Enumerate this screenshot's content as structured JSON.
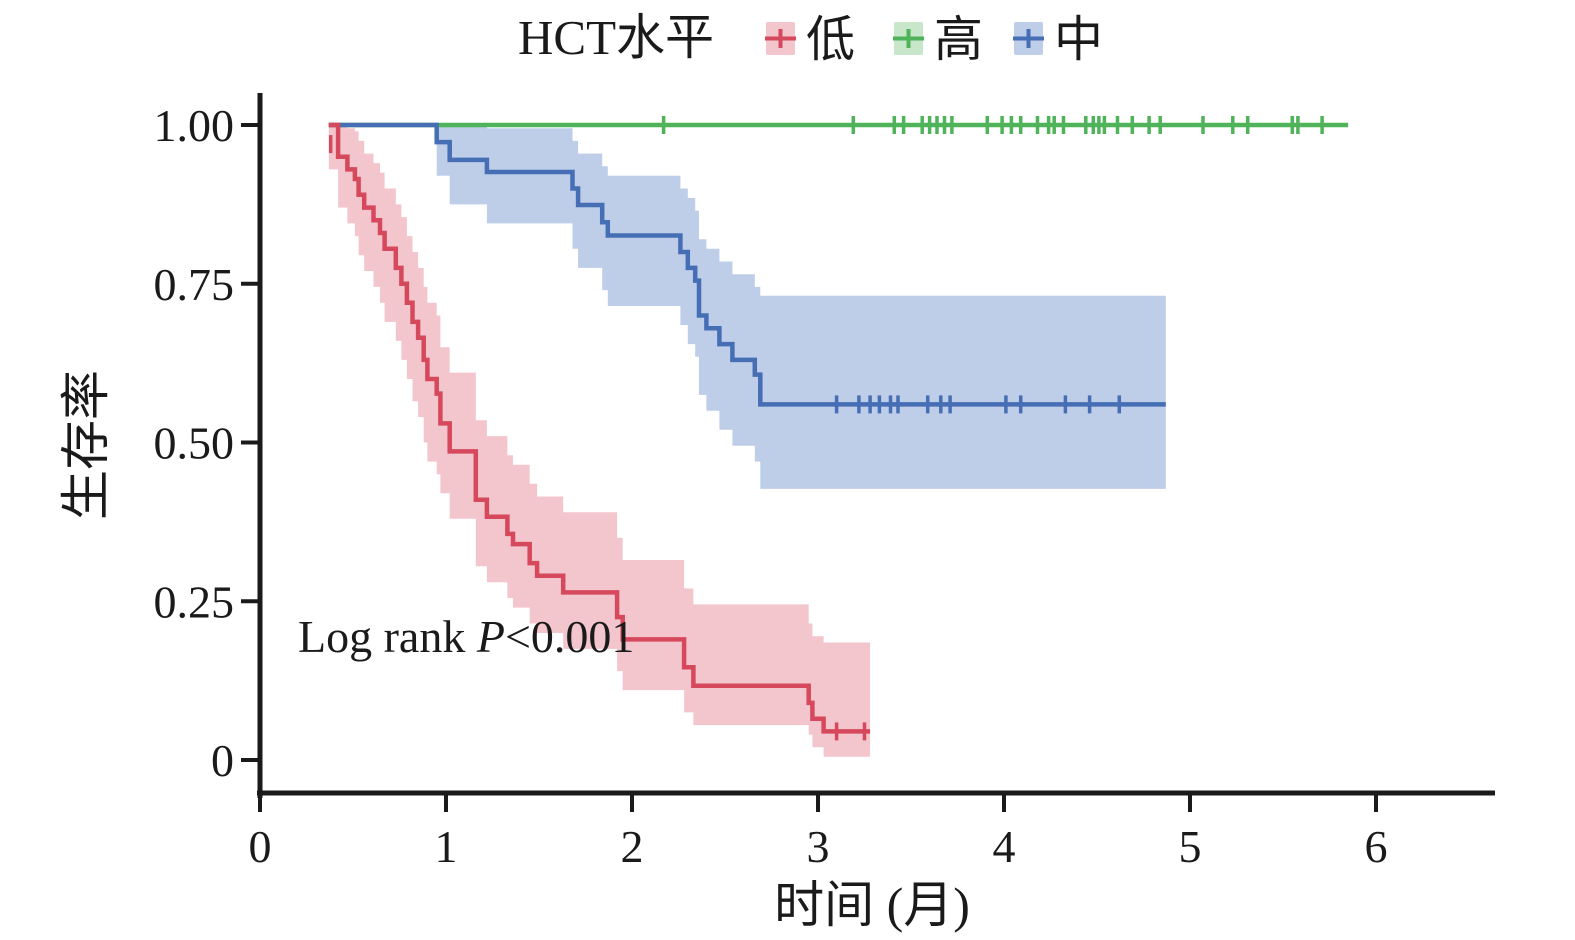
{
  "colors": {
    "axis": "#1a1a1a",
    "text": "#1a1a1a",
    "background": "#ffffff"
  },
  "legend": {
    "title": "HCT水平",
    "items": [
      {
        "label": "低",
        "key": "low"
      },
      {
        "label": "高",
        "key": "high"
      },
      {
        "label": "中",
        "key": "medium"
      }
    ]
  },
  "annotation": {
    "text_before": "Log rank ",
    "italic_part": "P",
    "text_after": "<0.001"
  },
  "axes": {
    "x_label": "时间 (月)",
    "y_label": "生存率",
    "x_ticks": [
      {
        "value": 0,
        "label": "0"
      },
      {
        "value": 1,
        "label": "1"
      },
      {
        "value": 2,
        "label": "2"
      },
      {
        "value": 3,
        "label": "3"
      },
      {
        "value": 4,
        "label": "4"
      },
      {
        "value": 5,
        "label": "5"
      },
      {
        "value": 6,
        "label": "6"
      }
    ],
    "y_ticks": [
      {
        "value": 0,
        "label": "0"
      },
      {
        "value": 0.25,
        "label": "0.25"
      },
      {
        "value": 0.5,
        "label": "0.50"
      },
      {
        "value": 0.75,
        "label": "0.75"
      },
      {
        "value": 1.0,
        "label": "1.00"
      }
    ]
  },
  "chart_data": {
    "type": "line",
    "subtype": "kaplan-meier-step",
    "title": "HCT水平",
    "xlabel": "时间 (月)",
    "ylabel": "生存率",
    "xlim": [
      0,
      6.6
    ],
    "ylim": [
      0,
      1.0
    ],
    "x_ticks": [
      0,
      1,
      2,
      3,
      4,
      5,
      6
    ],
    "y_ticks": [
      0,
      0.25,
      0.5,
      0.75,
      1.0
    ],
    "grid": false,
    "legend_position": "top",
    "annotation": "Log rank P<0.001",
    "series": [
      {
        "name": "低",
        "key": "low",
        "color": "#d6485b",
        "band_color": "#f3c6cd",
        "steps": [
          [
            0.37,
            1.0
          ],
          [
            0.42,
            0.95
          ],
          [
            0.47,
            0.93
          ],
          [
            0.51,
            0.915
          ],
          [
            0.53,
            0.89
          ],
          [
            0.56,
            0.87
          ],
          [
            0.61,
            0.85
          ],
          [
            0.645,
            0.83
          ],
          [
            0.67,
            0.805
          ],
          [
            0.73,
            0.775
          ],
          [
            0.76,
            0.75
          ],
          [
            0.79,
            0.72
          ],
          [
            0.82,
            0.69
          ],
          [
            0.85,
            0.665
          ],
          [
            0.88,
            0.63
          ],
          [
            0.9,
            0.6
          ],
          [
            0.95,
            0.577
          ],
          [
            0.97,
            0.53
          ],
          [
            1.02,
            0.486
          ],
          [
            1.16,
            0.41
          ],
          [
            1.22,
            0.383
          ],
          [
            1.33,
            0.356
          ],
          [
            1.36,
            0.34
          ],
          [
            1.45,
            0.31
          ],
          [
            1.49,
            0.29
          ],
          [
            1.63,
            0.264
          ],
          [
            1.92,
            0.225
          ],
          [
            1.95,
            0.19
          ],
          [
            2.28,
            0.146
          ],
          [
            2.33,
            0.117
          ],
          [
            2.95,
            0.09
          ],
          [
            2.97,
            0.065
          ],
          [
            3.03,
            0.045
          ]
        ],
        "end_t": 3.28,
        "censors": [
          [
            0.38,
            0.97
          ],
          [
            3.1,
            0.045
          ],
          [
            3.25,
            0.045
          ]
        ],
        "band": [
          [
            0.37,
            0.93,
            1.0
          ],
          [
            0.42,
            0.87,
            1.0
          ],
          [
            0.47,
            0.845,
            0.995
          ],
          [
            0.51,
            0.825,
            0.99
          ],
          [
            0.53,
            0.795,
            0.975
          ],
          [
            0.56,
            0.77,
            0.955
          ],
          [
            0.61,
            0.745,
            0.94
          ],
          [
            0.645,
            0.72,
            0.925
          ],
          [
            0.67,
            0.69,
            0.9
          ],
          [
            0.73,
            0.66,
            0.875
          ],
          [
            0.76,
            0.63,
            0.855
          ],
          [
            0.79,
            0.6,
            0.825
          ],
          [
            0.82,
            0.565,
            0.8
          ],
          [
            0.85,
            0.54,
            0.775
          ],
          [
            0.88,
            0.5,
            0.745
          ],
          [
            0.9,
            0.47,
            0.72
          ],
          [
            0.95,
            0.45,
            0.7
          ],
          [
            0.97,
            0.42,
            0.65
          ],
          [
            1.02,
            0.38,
            0.61
          ],
          [
            1.16,
            0.305,
            0.535
          ],
          [
            1.22,
            0.28,
            0.51
          ],
          [
            1.33,
            0.255,
            0.48
          ],
          [
            1.36,
            0.24,
            0.465
          ],
          [
            1.45,
            0.215,
            0.435
          ],
          [
            1.49,
            0.2,
            0.415
          ],
          [
            1.63,
            0.175,
            0.39
          ],
          [
            1.92,
            0.14,
            0.35
          ],
          [
            1.95,
            0.11,
            0.315
          ],
          [
            2.28,
            0.075,
            0.27
          ],
          [
            2.33,
            0.055,
            0.245
          ],
          [
            2.95,
            0.04,
            0.215
          ],
          [
            2.97,
            0.02,
            0.195
          ],
          [
            3.03,
            0.005,
            0.185
          ]
        ]
      },
      {
        "name": "高",
        "key": "high",
        "color": "#4fb35a",
        "band_color": "#c8e6c9",
        "steps": [
          [
            0.37,
            1.0
          ]
        ],
        "end_t": 5.85,
        "censors": [
          [
            2.17,
            1
          ],
          [
            3.19,
            1
          ],
          [
            3.41,
            1
          ],
          [
            3.46,
            1
          ],
          [
            3.56,
            1
          ],
          [
            3.6,
            1
          ],
          [
            3.64,
            1
          ],
          [
            3.68,
            1
          ],
          [
            3.72,
            1
          ],
          [
            3.91,
            1
          ],
          [
            3.99,
            1
          ],
          [
            4.04,
            1
          ],
          [
            4.09,
            1
          ],
          [
            4.18,
            1
          ],
          [
            4.24,
            1
          ],
          [
            4.27,
            1
          ],
          [
            4.32,
            1
          ],
          [
            4.44,
            1
          ],
          [
            4.48,
            1
          ],
          [
            4.51,
            1
          ],
          [
            4.54,
            1
          ],
          [
            4.61,
            1
          ],
          [
            4.69,
            1
          ],
          [
            4.78,
            1
          ],
          [
            4.84,
            1
          ],
          [
            5.07,
            1
          ],
          [
            5.23,
            1
          ],
          [
            5.31,
            1
          ],
          [
            5.55,
            1
          ],
          [
            5.58,
            1
          ],
          [
            5.71,
            1
          ]
        ],
        "band": []
      },
      {
        "name": "中",
        "key": "medium",
        "color": "#466eb4",
        "band_color": "#becde8",
        "steps": [
          [
            0.37,
            1.0
          ],
          [
            0.95,
            0.973
          ],
          [
            1.02,
            0.945
          ],
          [
            1.22,
            0.926
          ],
          [
            1.68,
            0.9
          ],
          [
            1.71,
            0.874
          ],
          [
            1.84,
            0.847
          ],
          [
            1.87,
            0.826
          ],
          [
            2.26,
            0.8
          ],
          [
            2.3,
            0.775
          ],
          [
            2.34,
            0.755
          ],
          [
            2.36,
            0.7
          ],
          [
            2.4,
            0.68
          ],
          [
            2.47,
            0.655
          ],
          [
            2.54,
            0.63
          ],
          [
            2.66,
            0.607
          ],
          [
            2.69,
            0.56
          ]
        ],
        "end_t": 4.87,
        "censors": [
          [
            3.1,
            0.56
          ],
          [
            3.22,
            0.56
          ],
          [
            3.28,
            0.56
          ],
          [
            3.33,
            0.56
          ],
          [
            3.39,
            0.56
          ],
          [
            3.43,
            0.56
          ],
          [
            3.59,
            0.56
          ],
          [
            3.66,
            0.56
          ],
          [
            3.71,
            0.56
          ],
          [
            4.01,
            0.56
          ],
          [
            4.09,
            0.56
          ],
          [
            4.33,
            0.56
          ],
          [
            4.46,
            0.56
          ],
          [
            4.62,
            0.56
          ]
        ],
        "band": [
          [
            0.95,
            0.92,
            1.0
          ],
          [
            1.02,
            0.875,
            1.0
          ],
          [
            1.22,
            0.845,
            0.995
          ],
          [
            1.68,
            0.805,
            0.975
          ],
          [
            1.71,
            0.775,
            0.955
          ],
          [
            1.84,
            0.74,
            0.935
          ],
          [
            1.87,
            0.715,
            0.92
          ],
          [
            2.26,
            0.685,
            0.9
          ],
          [
            2.3,
            0.655,
            0.885
          ],
          [
            2.34,
            0.635,
            0.865
          ],
          [
            2.36,
            0.575,
            0.82
          ],
          [
            2.4,
            0.55,
            0.805
          ],
          [
            2.47,
            0.52,
            0.785
          ],
          [
            2.54,
            0.495,
            0.765
          ],
          [
            2.66,
            0.47,
            0.745
          ],
          [
            2.69,
            0.427,
            0.731
          ]
        ]
      }
    ]
  }
}
